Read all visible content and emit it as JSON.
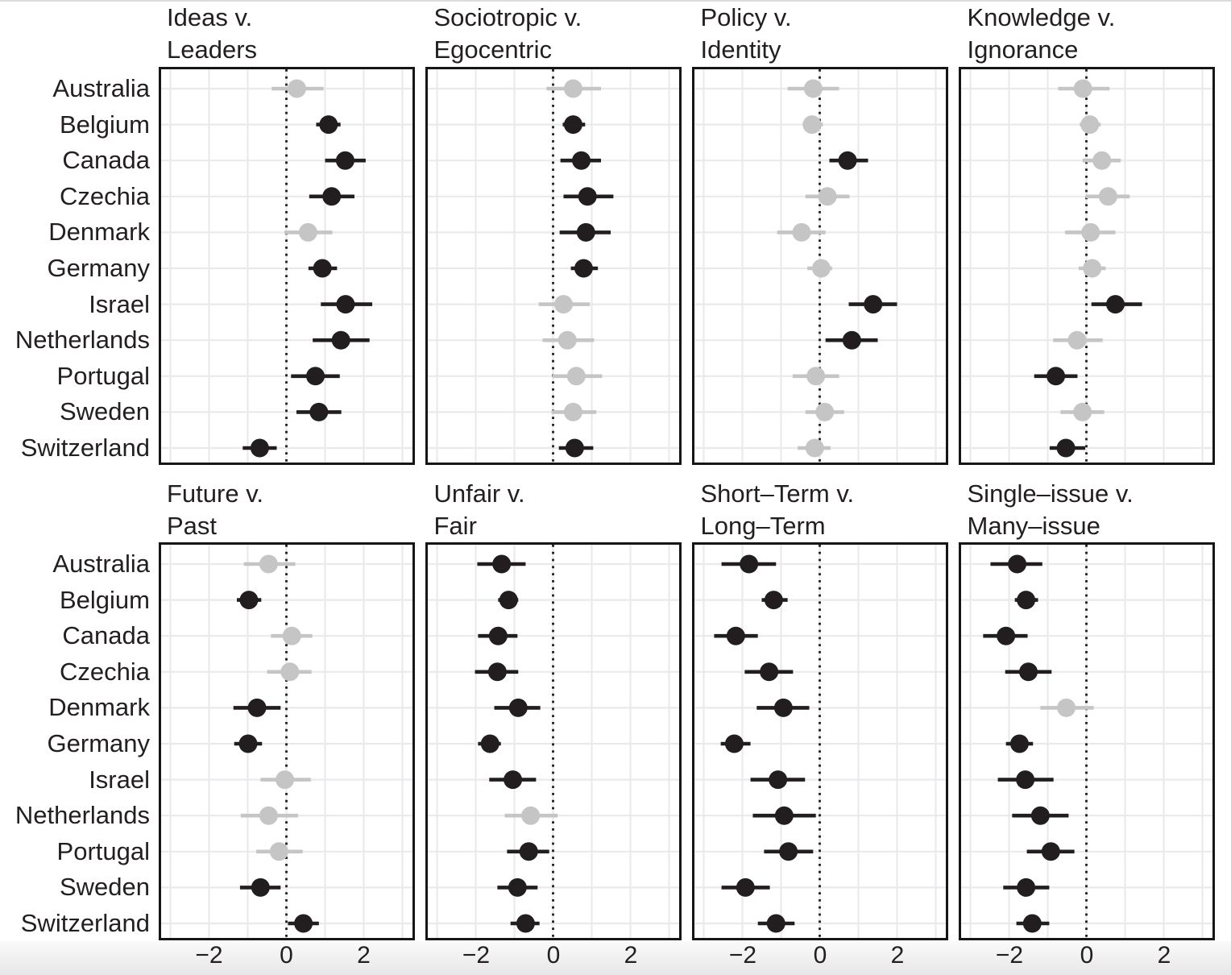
{
  "chart_data": {
    "type": "scatter",
    "subtype": "faceted dot-whisker (coefficient) plot, 2 rows x 4 columns of facets",
    "grid": true,
    "legend": "none",
    "countries": [
      "Australia",
      "Belgium",
      "Canada",
      "Czechia",
      "Denmark",
      "Germany",
      "Israel",
      "Netherlands",
      "Portugal",
      "Sweden",
      "Switzerland"
    ],
    "x_axis": {
      "tick_values": [
        -2,
        0,
        2
      ],
      "tick_labels": [
        "−2",
        "0",
        "2"
      ],
      "range": [
        -3.3,
        3.3
      ],
      "gridline_interval": 1,
      "reference_line": 0
    },
    "colors": {
      "significant": "#221e1f",
      "nonsignificant": "#c5c5c5",
      "gridline": "#e9eaec",
      "border": "#161616",
      "zero_line": "#1c1c1c",
      "text": "#231f20",
      "panel_background": "#ffffff",
      "page_background": "#ffffff"
    },
    "panels": [
      {
        "title_line1": "Ideas v.",
        "title_line2": "Leaders",
        "estimates": [
          {
            "country": "Australia",
            "value": 0.27,
            "ci_low": -0.38,
            "ci_high": 0.96,
            "significant": false
          },
          {
            "country": "Belgium",
            "value": 1.09,
            "ci_low": 0.77,
            "ci_high": 1.4,
            "significant": true
          },
          {
            "country": "Canada",
            "value": 1.52,
            "ci_low": 1.0,
            "ci_high": 2.05,
            "significant": true
          },
          {
            "country": "Czechia",
            "value": 1.17,
            "ci_low": 0.59,
            "ci_high": 1.76,
            "significant": true
          },
          {
            "country": "Denmark",
            "value": 0.56,
            "ci_low": -0.05,
            "ci_high": 1.19,
            "significant": false
          },
          {
            "country": "Germany",
            "value": 0.93,
            "ci_low": 0.57,
            "ci_high": 1.31,
            "significant": true
          },
          {
            "country": "Israel",
            "value": 1.53,
            "ci_low": 0.89,
            "ci_high": 2.22,
            "significant": true
          },
          {
            "country": "Netherlands",
            "value": 1.41,
            "ci_low": 0.68,
            "ci_high": 2.15,
            "significant": true
          },
          {
            "country": "Portugal",
            "value": 0.75,
            "ci_low": 0.12,
            "ci_high": 1.38,
            "significant": true
          },
          {
            "country": "Sweden",
            "value": 0.84,
            "ci_low": 0.26,
            "ci_high": 1.42,
            "significant": true
          },
          {
            "country": "Switzerland",
            "value": -0.69,
            "ci_low": -1.13,
            "ci_high": -0.25,
            "significant": true
          }
        ]
      },
      {
        "title_line1": "Sociotropic v.",
        "title_line2": "Egocentric",
        "estimates": [
          {
            "country": "Australia",
            "value": 0.52,
            "ci_low": -0.17,
            "ci_high": 1.24,
            "significant": false
          },
          {
            "country": "Belgium",
            "value": 0.52,
            "ci_low": 0.25,
            "ci_high": 0.83,
            "significant": true
          },
          {
            "country": "Canada",
            "value": 0.73,
            "ci_low": 0.19,
            "ci_high": 1.24,
            "significant": true
          },
          {
            "country": "Czechia",
            "value": 0.89,
            "ci_low": 0.27,
            "ci_high": 1.56,
            "significant": true
          },
          {
            "country": "Denmark",
            "value": 0.85,
            "ci_low": 0.17,
            "ci_high": 1.49,
            "significant": true
          },
          {
            "country": "Germany",
            "value": 0.79,
            "ci_low": 0.46,
            "ci_high": 1.16,
            "significant": true
          },
          {
            "country": "Israel",
            "value": 0.27,
            "ci_low": -0.37,
            "ci_high": 0.95,
            "significant": false
          },
          {
            "country": "Netherlands",
            "value": 0.37,
            "ci_low": -0.27,
            "ci_high": 1.06,
            "significant": false
          },
          {
            "country": "Portugal",
            "value": 0.6,
            "ci_low": -0.02,
            "ci_high": 1.27,
            "significant": false
          },
          {
            "country": "Sweden",
            "value": 0.52,
            "ci_low": -0.04,
            "ci_high": 1.12,
            "significant": false
          },
          {
            "country": "Switzerland",
            "value": 0.56,
            "ci_low": 0.15,
            "ci_high": 1.04,
            "significant": true
          }
        ]
      },
      {
        "title_line1": "Policy v.",
        "title_line2": "Identity",
        "estimates": [
          {
            "country": "Australia",
            "value": -0.17,
            "ci_low": -0.83,
            "ci_high": 0.5,
            "significant": false
          },
          {
            "country": "Belgium",
            "value": -0.2,
            "ci_low": -0.44,
            "ci_high": 0.08,
            "significant": false
          },
          {
            "country": "Canada",
            "value": 0.72,
            "ci_low": 0.25,
            "ci_high": 1.25,
            "significant": true
          },
          {
            "country": "Czechia",
            "value": 0.2,
            "ci_low": -0.37,
            "ci_high": 0.77,
            "significant": false
          },
          {
            "country": "Denmark",
            "value": -0.47,
            "ci_low": -1.1,
            "ci_high": 0.15,
            "significant": false
          },
          {
            "country": "Germany",
            "value": 0.04,
            "ci_low": -0.32,
            "ci_high": 0.32,
            "significant": false
          },
          {
            "country": "Israel",
            "value": 1.38,
            "ci_low": 0.75,
            "ci_high": 2.0,
            "significant": true
          },
          {
            "country": "Netherlands",
            "value": 0.83,
            "ci_low": 0.15,
            "ci_high": 1.5,
            "significant": true
          },
          {
            "country": "Portugal",
            "value": -0.1,
            "ci_low": -0.7,
            "ci_high": 0.5,
            "significant": false
          },
          {
            "country": "Sweden",
            "value": 0.13,
            "ci_low": -0.37,
            "ci_high": 0.63,
            "significant": false
          },
          {
            "country": "Switzerland",
            "value": -0.13,
            "ci_low": -0.57,
            "ci_high": 0.28,
            "significant": false
          }
        ]
      },
      {
        "title_line1": "Knowledge v.",
        "title_line2": "Ignorance",
        "estimates": [
          {
            "country": "Australia",
            "value": -0.09,
            "ci_low": -0.73,
            "ci_high": 0.6,
            "significant": false
          },
          {
            "country": "Belgium",
            "value": 0.09,
            "ci_low": -0.17,
            "ci_high": 0.37,
            "significant": false
          },
          {
            "country": "Canada",
            "value": 0.4,
            "ci_low": -0.1,
            "ci_high": 0.89,
            "significant": false
          },
          {
            "country": "Czechia",
            "value": 0.56,
            "ci_low": -0.02,
            "ci_high": 1.12,
            "significant": false
          },
          {
            "country": "Denmark",
            "value": 0.11,
            "ci_low": -0.55,
            "ci_high": 0.75,
            "significant": false
          },
          {
            "country": "Germany",
            "value": 0.15,
            "ci_low": -0.2,
            "ci_high": 0.5,
            "significant": false
          },
          {
            "country": "Israel",
            "value": 0.75,
            "ci_low": 0.13,
            "ci_high": 1.44,
            "significant": true
          },
          {
            "country": "Netherlands",
            "value": -0.24,
            "ci_low": -0.86,
            "ci_high": 0.42,
            "significant": false
          },
          {
            "country": "Portugal",
            "value": -0.79,
            "ci_low": -1.35,
            "ci_high": -0.23,
            "significant": true
          },
          {
            "country": "Sweden",
            "value": -0.1,
            "ci_low": -0.67,
            "ci_high": 0.46,
            "significant": false
          },
          {
            "country": "Switzerland",
            "value": -0.53,
            "ci_low": -0.95,
            "ci_high": -0.03,
            "significant": true
          }
        ]
      },
      {
        "title_line1": "Future v.",
        "title_line2": "Past",
        "estimates": [
          {
            "country": "Australia",
            "value": -0.46,
            "ci_low": -1.1,
            "ci_high": 0.23,
            "significant": false
          },
          {
            "country": "Belgium",
            "value": -0.97,
            "ci_low": -1.28,
            "ci_high": -0.65,
            "significant": true
          },
          {
            "country": "Canada",
            "value": 0.14,
            "ci_low": -0.4,
            "ci_high": 0.67,
            "significant": false
          },
          {
            "country": "Czechia",
            "value": 0.09,
            "ci_low": -0.5,
            "ci_high": 0.65,
            "significant": false
          },
          {
            "country": "Denmark",
            "value": -0.76,
            "ci_low": -1.37,
            "ci_high": -0.15,
            "significant": true
          },
          {
            "country": "Germany",
            "value": -0.99,
            "ci_low": -1.35,
            "ci_high": -0.63,
            "significant": true
          },
          {
            "country": "Israel",
            "value": -0.04,
            "ci_low": -0.67,
            "ci_high": 0.63,
            "significant": false
          },
          {
            "country": "Netherlands",
            "value": -0.46,
            "ci_low": -1.18,
            "ci_high": 0.3,
            "significant": false
          },
          {
            "country": "Portugal",
            "value": -0.19,
            "ci_low": -0.78,
            "ci_high": 0.42,
            "significant": false
          },
          {
            "country": "Sweden",
            "value": -0.67,
            "ci_low": -1.2,
            "ci_high": -0.15,
            "significant": true
          },
          {
            "country": "Switzerland",
            "value": 0.44,
            "ci_low": 0.04,
            "ci_high": 0.84,
            "significant": true
          }
        ]
      },
      {
        "title_line1": "Unfair v.",
        "title_line2": "Fair",
        "estimates": [
          {
            "country": "Australia",
            "value": -1.33,
            "ci_low": -1.96,
            "ci_high": -0.71,
            "significant": true
          },
          {
            "country": "Belgium",
            "value": -1.15,
            "ci_low": -1.42,
            "ci_high": -0.9,
            "significant": true
          },
          {
            "country": "Canada",
            "value": -1.42,
            "ci_low": -1.94,
            "ci_high": -0.92,
            "significant": true
          },
          {
            "country": "Czechia",
            "value": -1.44,
            "ci_low": -2.02,
            "ci_high": -0.9,
            "significant": true
          },
          {
            "country": "Denmark",
            "value": -0.9,
            "ci_low": -1.52,
            "ci_high": -0.33,
            "significant": true
          },
          {
            "country": "Germany",
            "value": -1.63,
            "ci_low": -1.94,
            "ci_high": -1.35,
            "significant": true
          },
          {
            "country": "Israel",
            "value": -1.04,
            "ci_low": -1.65,
            "ci_high": -0.44,
            "significant": true
          },
          {
            "country": "Netherlands",
            "value": -0.58,
            "ci_low": -1.25,
            "ci_high": 0.12,
            "significant": false
          },
          {
            "country": "Portugal",
            "value": -0.63,
            "ci_low": -1.19,
            "ci_high": -0.1,
            "significant": true
          },
          {
            "country": "Sweden",
            "value": -0.92,
            "ci_low": -1.44,
            "ci_high": -0.4,
            "significant": true
          },
          {
            "country": "Switzerland",
            "value": -0.71,
            "ci_low": -1.1,
            "ci_high": -0.35,
            "significant": true
          }
        ]
      },
      {
        "title_line1": "Short–Term v.",
        "title_line2": "Long–Term",
        "estimates": [
          {
            "country": "Australia",
            "value": -1.83,
            "ci_low": -2.54,
            "ci_high": -1.13,
            "significant": true
          },
          {
            "country": "Belgium",
            "value": -1.19,
            "ci_low": -1.5,
            "ci_high": -0.83,
            "significant": true
          },
          {
            "country": "Canada",
            "value": -2.17,
            "ci_low": -2.73,
            "ci_high": -1.6,
            "significant": true
          },
          {
            "country": "Czechia",
            "value": -1.31,
            "ci_low": -1.94,
            "ci_high": -0.69,
            "significant": true
          },
          {
            "country": "Denmark",
            "value": -0.94,
            "ci_low": -1.63,
            "ci_high": -0.27,
            "significant": true
          },
          {
            "country": "Germany",
            "value": -2.21,
            "ci_low": -2.56,
            "ci_high": -1.79,
            "significant": true
          },
          {
            "country": "Israel",
            "value": -1.08,
            "ci_low": -1.79,
            "ci_high": -0.38,
            "significant": true
          },
          {
            "country": "Netherlands",
            "value": -0.92,
            "ci_low": -1.73,
            "ci_high": -0.1,
            "significant": true
          },
          {
            "country": "Portugal",
            "value": -0.81,
            "ci_low": -1.44,
            "ci_high": -0.17,
            "significant": true
          },
          {
            "country": "Sweden",
            "value": -1.92,
            "ci_low": -2.54,
            "ci_high": -1.29,
            "significant": true
          },
          {
            "country": "Switzerland",
            "value": -1.13,
            "ci_low": -1.6,
            "ci_high": -0.65,
            "significant": true
          }
        ]
      },
      {
        "title_line1": "Single–issue v.",
        "title_line2": "Many–issue",
        "estimates": [
          {
            "country": "Australia",
            "value": -1.79,
            "ci_low": -2.48,
            "ci_high": -1.14,
            "significant": true
          },
          {
            "country": "Belgium",
            "value": -1.56,
            "ci_low": -1.85,
            "ci_high": -1.25,
            "significant": true
          },
          {
            "country": "Canada",
            "value": -2.08,
            "ci_low": -2.67,
            "ci_high": -1.52,
            "significant": true
          },
          {
            "country": "Czechia",
            "value": -1.5,
            "ci_low": -2.1,
            "ci_high": -0.9,
            "significant": true
          },
          {
            "country": "Denmark",
            "value": -0.52,
            "ci_low": -1.19,
            "ci_high": 0.19,
            "significant": false
          },
          {
            "country": "Germany",
            "value": -1.73,
            "ci_low": -2.08,
            "ci_high": -1.38,
            "significant": true
          },
          {
            "country": "Israel",
            "value": -1.58,
            "ci_low": -2.29,
            "ci_high": -0.85,
            "significant": true
          },
          {
            "country": "Netherlands",
            "value": -1.19,
            "ci_low": -1.92,
            "ci_high": -0.46,
            "significant": true
          },
          {
            "country": "Portugal",
            "value": -0.92,
            "ci_low": -1.54,
            "ci_high": -0.31,
            "significant": true
          },
          {
            "country": "Sweden",
            "value": -1.56,
            "ci_low": -2.15,
            "ci_high": -0.96,
            "significant": true
          },
          {
            "country": "Switzerland",
            "value": -1.4,
            "ci_low": -1.81,
            "ci_high": -0.96,
            "significant": true
          }
        ]
      }
    ]
  }
}
